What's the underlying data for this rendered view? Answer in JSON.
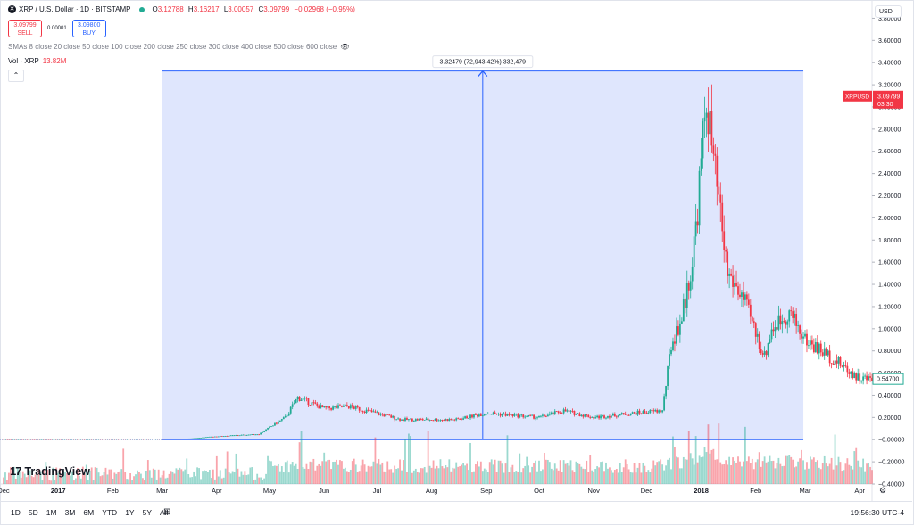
{
  "header": {
    "symbol_title": "XRP / U.S. Dollar · 1D · BITSTAMP",
    "logo_glyph": "✕",
    "ohlc": {
      "o_label": "O",
      "o": "3.12788",
      "h_label": "H",
      "h": "3.16217",
      "l_label": "L",
      "l": "3.00057",
      "c_label": "C",
      "c": "3.09799",
      "change": "−0.02968 (−0.95%)"
    },
    "sell": {
      "price": "3.09799",
      "label": "SELL"
    },
    "spread": "0.00001",
    "buy": {
      "price": "3.09800",
      "label": "BUY"
    },
    "sma_text": "SMAs 8 close 20 close 50 close 100 close 200 close 250 close 300 close 400 close 500 close 600 close",
    "vol_label": "Vol · XRP",
    "vol_value": "13.82M",
    "collapse_glyph": "⌃",
    "eye_glyph": "👁"
  },
  "currency": "USD",
  "brand": "TradingView",
  "brand_mark": "17",
  "bottom": {
    "ranges": [
      "1D",
      "5D",
      "1M",
      "3M",
      "6M",
      "YTD",
      "1Y",
      "5Y",
      "All"
    ],
    "calendar_glyph": "⊞",
    "clock": "19:56:30 UTC-4",
    "gear_glyph": "⚙"
  },
  "measure_label": "3.32479 (72,943.42%) 332,479",
  "price_tag": {
    "symbol": "XRPUSD",
    "price": "3.09799",
    "countdown": "03:30"
  },
  "axis_price_label": "0.54700",
  "colors": {
    "up": "#22ab94",
    "down": "#f23645",
    "measure_fill": "#dbe3fd",
    "measure_line": "#2962ff",
    "axis_text": "#131722"
  },
  "chart_data": {
    "type": "candlestick",
    "title": "",
    "y_ticks": [
      "3.80000",
      "3.60000",
      "3.40000",
      "3.20000",
      "3.00000",
      "2.80000",
      "2.60000",
      "2.40000",
      "2.20000",
      "2.00000",
      "1.80000",
      "1.60000",
      "1.40000",
      "1.20000",
      "1.00000",
      "0.80000",
      "0.60000",
      "0.40000",
      "0.20000",
      "−0.00000",
      "−0.20000",
      "−0.40000"
    ],
    "ylim": [
      -0.4,
      3.9
    ],
    "x_ticks": [
      "Dec",
      "2017",
      "Feb",
      "Mar",
      "Apr",
      "May",
      "Jun",
      "Jul",
      "Aug",
      "Sep",
      "Oct",
      "Nov",
      "Dec",
      "2018",
      "Feb",
      "Mar",
      "Apr"
    ],
    "x_range": [
      "2016-12-01",
      "2018-04-08"
    ],
    "x_tick_dates": [
      "2016-12-01",
      "2017-01-01",
      "2017-02-01",
      "2017-03-01",
      "2017-04-01",
      "2017-05-01",
      "2017-06-01",
      "2017-07-01",
      "2017-08-01",
      "2017-09-01",
      "2017-10-01",
      "2017-11-01",
      "2017-12-01",
      "2018-01-01",
      "2018-02-01",
      "2018-03-01",
      "2018-04-01"
    ],
    "series": [
      {
        "name": "XRPUSD",
        "key_points": [
          {
            "date": "2016-12-01",
            "close": 0.006
          },
          {
            "date": "2017-02-01",
            "close": 0.007
          },
          {
            "date": "2017-03-15",
            "close": 0.008
          },
          {
            "date": "2017-04-01",
            "close": 0.03
          },
          {
            "date": "2017-04-25",
            "close": 0.05
          },
          {
            "date": "2017-05-10",
            "close": 0.2
          },
          {
            "date": "2017-05-17",
            "close": 0.38
          },
          {
            "date": "2017-06-01",
            "close": 0.28
          },
          {
            "date": "2017-06-15",
            "close": 0.3
          },
          {
            "date": "2017-07-15",
            "close": 0.18
          },
          {
            "date": "2017-08-15",
            "close": 0.18
          },
          {
            "date": "2017-09-01",
            "close": 0.24
          },
          {
            "date": "2017-10-01",
            "close": 0.2
          },
          {
            "date": "2017-10-15",
            "close": 0.26
          },
          {
            "date": "2017-11-01",
            "close": 0.2
          },
          {
            "date": "2017-12-01",
            "close": 0.25
          },
          {
            "date": "2017-12-10",
            "close": 0.26
          },
          {
            "date": "2017-12-15",
            "close": 0.85
          },
          {
            "date": "2017-12-21",
            "close": 1.1
          },
          {
            "date": "2017-12-27",
            "close": 1.6
          },
          {
            "date": "2017-12-30",
            "close": 2.1
          },
          {
            "date": "2018-01-04",
            "close": 3.09
          },
          {
            "date": "2018-01-08",
            "close": 2.5
          },
          {
            "date": "2018-01-12",
            "close": 2.0
          },
          {
            "date": "2018-01-16",
            "close": 1.5
          },
          {
            "date": "2018-01-24",
            "close": 1.3
          },
          {
            "date": "2018-02-06",
            "close": 0.75
          },
          {
            "date": "2018-02-10",
            "close": 1.0
          },
          {
            "date": "2018-02-20",
            "close": 1.15
          },
          {
            "date": "2018-03-01",
            "close": 0.9
          },
          {
            "date": "2018-03-15",
            "close": 0.75
          },
          {
            "date": "2018-04-01",
            "close": 0.55
          },
          {
            "date": "2018-04-07",
            "close": 0.547
          }
        ]
      }
    ],
    "measure": {
      "start_date": "2017-03-01",
      "end_date": "2018-02-28",
      "low": 0.0,
      "high": 3.32479
    }
  }
}
